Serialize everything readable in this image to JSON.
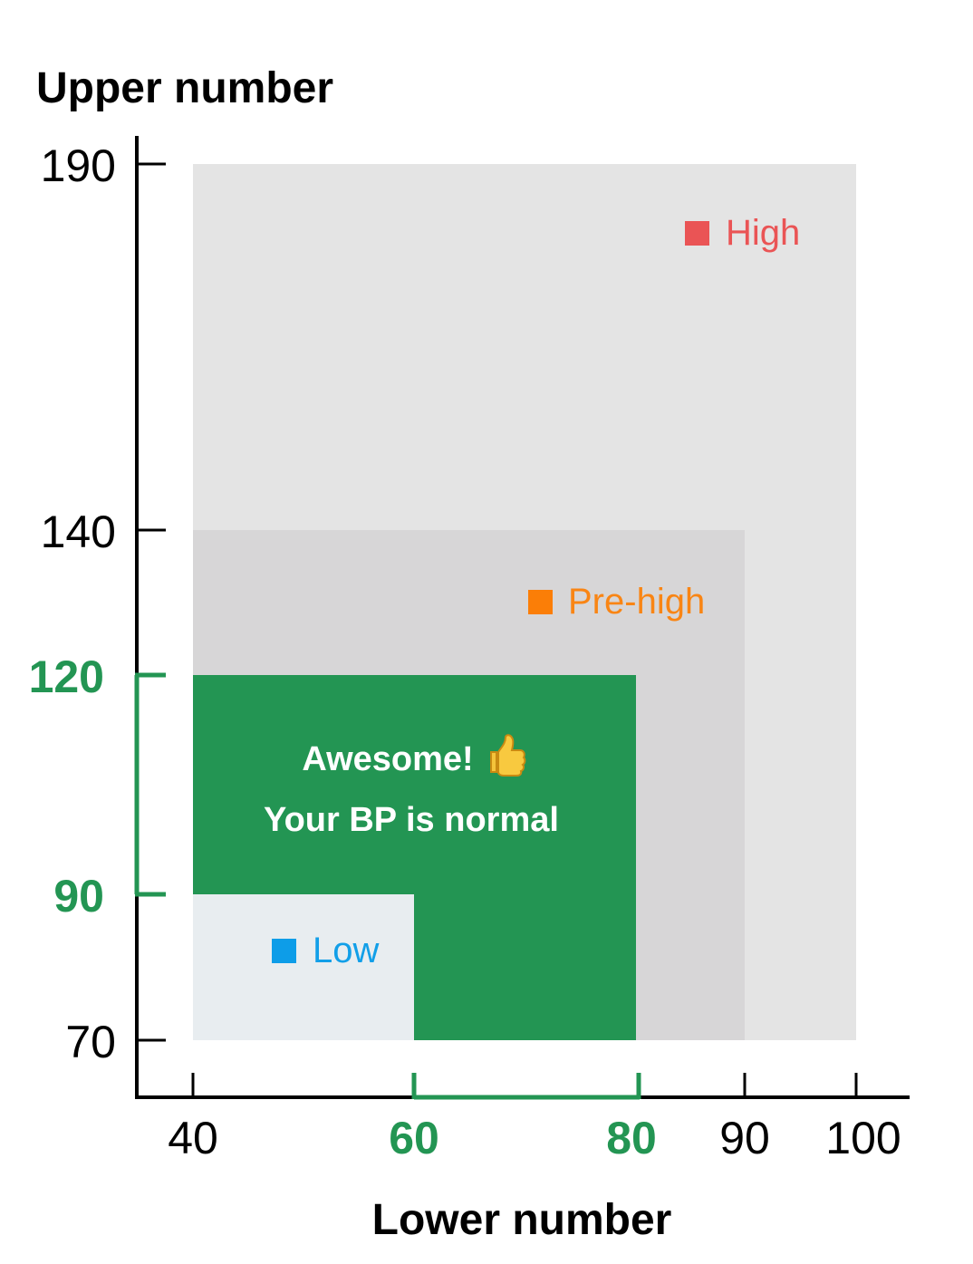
{
  "chart_data": {
    "type": "area",
    "title": "",
    "ylabel": "Upper number",
    "xlabel": "Lower number",
    "xlim": [
      40,
      100
    ],
    "ylim": [
      70,
      190
    ],
    "x_ticks": [
      {
        "value": 40,
        "label": "40",
        "highlight": false
      },
      {
        "value": 60,
        "label": "60",
        "highlight": true
      },
      {
        "value": 80,
        "label": "80",
        "highlight": true
      },
      {
        "value": 90,
        "label": "90",
        "highlight": false
      },
      {
        "value": 100,
        "label": "100",
        "highlight": false
      }
    ],
    "y_ticks": [
      {
        "value": 70,
        "label": "70",
        "highlight": false
      },
      {
        "value": 90,
        "label": "90",
        "highlight": true
      },
      {
        "value": 120,
        "label": "120",
        "highlight": true
      },
      {
        "value": 140,
        "label": "140",
        "highlight": false
      },
      {
        "value": 190,
        "label": "190",
        "highlight": false
      }
    ],
    "zones": [
      {
        "name": "High",
        "x": [
          40,
          100
        ],
        "y": [
          70,
          190
        ],
        "fill": "#e4e4e4",
        "label_color": "#ea5455",
        "marker_color": "#ea5455"
      },
      {
        "name": "Pre-high",
        "x": [
          40,
          90
        ],
        "y": [
          70,
          140
        ],
        "fill": "#d7d6d7",
        "label_color": "#f98514",
        "marker_color": "#fb7e07"
      },
      {
        "name": "Normal",
        "x": [
          40,
          80
        ],
        "y": [
          70,
          120
        ],
        "fill": "#239553"
      },
      {
        "name": "Low",
        "x": [
          40,
          60
        ],
        "y": [
          70,
          90
        ],
        "fill": "#e8edf0",
        "label_color": "#129fe8",
        "marker_color": "#0d9de8"
      }
    ],
    "highlight_range": {
      "x": [
        60,
        80
      ],
      "y": [
        90,
        120
      ],
      "color": "#239553"
    },
    "message": {
      "line1": "Awesome!",
      "icon": "thumbs-up-icon",
      "line2": "Your BP is normal"
    }
  }
}
